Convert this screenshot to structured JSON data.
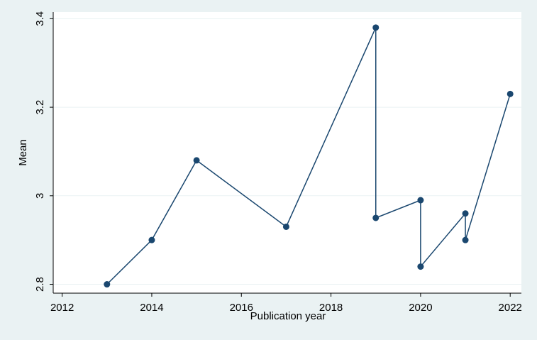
{
  "chart_data": {
    "type": "line",
    "x_label": "Publication year",
    "y_label": "Mean",
    "x": [
      2013,
      2014,
      2015,
      2017,
      2019,
      2019,
      2020,
      2020,
      2021,
      2021,
      2022
    ],
    "series": [
      {
        "name": "Mean",
        "color": "#1a476f",
        "values": [
          2.8,
          2.9,
          3.08,
          2.93,
          3.38,
          2.95,
          2.99,
          2.84,
          2.96,
          2.9,
          3.23
        ]
      }
    ],
    "xlim": [
      2011.8,
      2022.25
    ],
    "xticks": [
      2012,
      2014,
      2016,
      2018,
      2020,
      2022
    ],
    "ylim": [
      2.78,
      3.415
    ],
    "yticks": [
      2.8,
      3,
      3.2,
      3.4
    ],
    "grid": true
  }
}
